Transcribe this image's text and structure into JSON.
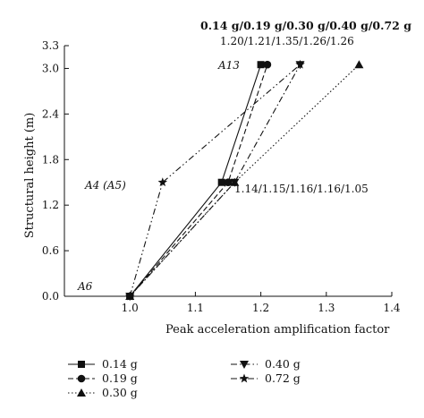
{
  "chart_data": {
    "type": "line",
    "xlabel": "Peak acceleration amplification factor",
    "ylabel": "Structural height (m)",
    "xlim": [
      0.9,
      1.4
    ],
    "ylim": [
      0.0,
      3.3
    ],
    "xticks": [
      "1.0",
      "1.1",
      "1.2",
      "1.3",
      "1.4"
    ],
    "yticks": [
      "0.0",
      "0.6",
      "1.2",
      "1.8",
      "2.4",
      "3.0",
      "3.3"
    ],
    "series": [
      {
        "name": "0.14 g",
        "marker": "square",
        "dash": "solid",
        "points": [
          {
            "x": 1.0,
            "y": 0.0
          },
          {
            "x": 1.14,
            "y": 1.5
          },
          {
            "x": 1.2,
            "y": 3.05
          }
        ]
      },
      {
        "name": "0.19 g",
        "marker": "circle",
        "dash": "dashed",
        "points": [
          {
            "x": 1.0,
            "y": 0.0
          },
          {
            "x": 1.15,
            "y": 1.5
          },
          {
            "x": 1.21,
            "y": 3.05
          }
        ]
      },
      {
        "name": "0.30 g",
        "marker": "triangle-up",
        "dash": "dotted",
        "points": [
          {
            "x": 1.0,
            "y": 0.0
          },
          {
            "x": 1.16,
            "y": 1.5
          },
          {
            "x": 1.35,
            "y": 3.05
          }
        ]
      },
      {
        "name": "0.40 g",
        "marker": "triangle-down",
        "dash": "dash-dot",
        "points": [
          {
            "x": 1.0,
            "y": 0.0
          },
          {
            "x": 1.16,
            "y": 1.5
          },
          {
            "x": 1.26,
            "y": 3.05
          }
        ]
      },
      {
        "name": "0.72 g",
        "marker": "star",
        "dash": "dash-dot-dot",
        "points": [
          {
            "x": 1.0,
            "y": 0.0
          },
          {
            "x": 1.05,
            "y": 1.5
          },
          {
            "x": 1.26,
            "y": 3.05
          }
        ]
      }
    ],
    "annotations": {
      "top_header": "0.14 g/0.19 g/0.30 g/0.40 g/0.72 g",
      "top_values": "1.20/1.21/1.35/1.26/1.26",
      "mid_values": "1.14/1.15/1.16/1.16/1.05",
      "label_a13": "A13",
      "label_a4": "A4 (A5)",
      "label_a6": "A6"
    },
    "legend_position": "bottom",
    "grid": false
  }
}
